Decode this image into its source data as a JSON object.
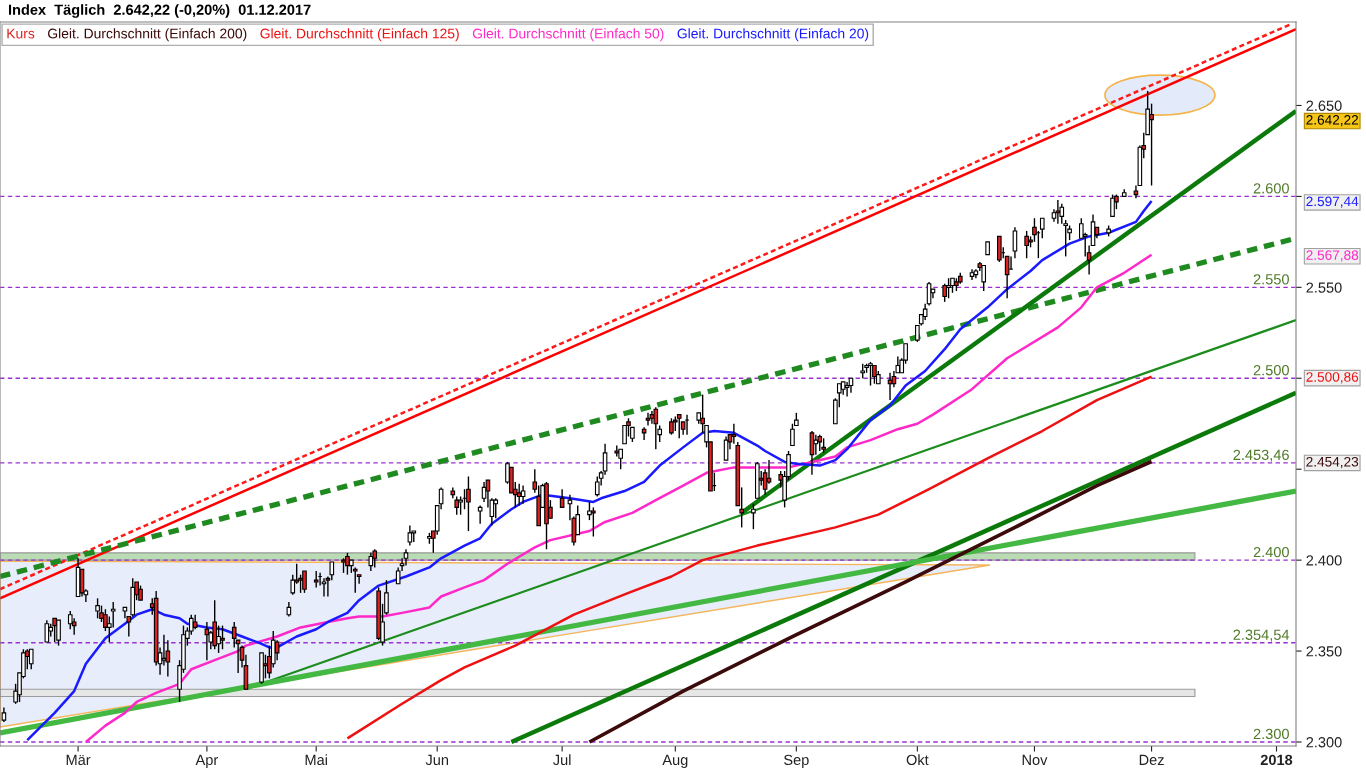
{
  "chart_data": {
    "type": "candlestick",
    "title": "Index  Täglich  2.642,22 (-0,20%)  01.12.2017",
    "legend": "top left",
    "xlim": [
      "2017-02-09",
      "2018-01-07"
    ],
    "ylim": [
      2297.8,
      2695.9
    ],
    "xticks": [
      {
        "value": "2017-03-01",
        "label": "Mär"
      },
      {
        "value": "2017-04-03",
        "label": "Apr"
      },
      {
        "value": "2017-05-01",
        "label": "Mai"
      },
      {
        "value": "2017-06-01",
        "label": "Jun"
      },
      {
        "value": "2017-07-03",
        "label": "Jul"
      },
      {
        "value": "2017-08-01",
        "label": "Aug"
      },
      {
        "value": "2017-09-01",
        "label": "Sep"
      },
      {
        "value": "2017-10-02",
        "label": "Okt"
      },
      {
        "value": "2017-11-01",
        "label": "Nov"
      },
      {
        "value": "2017-12-01",
        "label": "Dez"
      },
      {
        "value": "2018-01-02",
        "label": "2018"
      }
    ],
    "yticks": [
      {
        "value": 2300,
        "label": "2.300"
      },
      {
        "value": 2350,
        "label": "2.350"
      },
      {
        "value": 2400,
        "label": "2.400"
      },
      {
        "value": 2450,
        "label": null
      },
      {
        "value": 2454.23,
        "label": "2.454,23"
      },
      {
        "value": 2500,
        "label": null
      },
      {
        "value": 2500.86,
        "label": "2.500,86"
      },
      {
        "value": 2550,
        "label": "2.550"
      },
      {
        "value": 2567.88,
        "label": "2.567,88"
      },
      {
        "value": 2597.44,
        "label": "2.597,44"
      },
      {
        "value": 2600,
        "label": null
      },
      {
        "value": 2642.22,
        "label": "2.642,22"
      },
      {
        "value": 2650,
        "label": "2.650"
      }
    ],
    "ref_lines": [
      {
        "axis": "y",
        "value": 2600,
        "label": "2.600",
        "color": "#9b30d0",
        "line_style": "dashed"
      },
      {
        "axis": "y",
        "value": 2550,
        "label": "2.550",
        "color": "#9b30d0",
        "line_style": "dashed"
      },
      {
        "axis": "y",
        "value": 2500,
        "label": "2.500",
        "color": "#9b30d0",
        "line_style": "dashed"
      },
      {
        "axis": "y",
        "value": 2453.46,
        "label": "2.453,46",
        "color": "#9b30d0",
        "line_style": "dashed"
      },
      {
        "axis": "y",
        "value": 2400,
        "label": "2.400",
        "color": "#9b30d0",
        "line_style": "dashed"
      },
      {
        "axis": "y",
        "value": 2354.54,
        "label": "2.354,54",
        "color": "#9b30d0",
        "line_style": "dashed"
      },
      {
        "axis": "y",
        "value": 2300,
        "label": "2.300",
        "color": "#9b30d0",
        "line_style": "dashed"
      }
    ],
    "bands": [
      {
        "axis": "y",
        "from": 2400,
        "to": 2404,
        "color": "#b9dcb5"
      },
      {
        "axis": "y",
        "from": 2325,
        "to": 2329,
        "color": "#e6e6e6"
      }
    ],
    "series": [
      {
        "name": "Kurs",
        "x": [
          "2017-02-10",
          "2017-02-13",
          "2017-02-14",
          "2017-02-15",
          "2017-02-16",
          "2017-02-17",
          "2017-02-21",
          "2017-02-22",
          "2017-02-23",
          "2017-02-24",
          "2017-02-27",
          "2017-02-28",
          "2017-03-01",
          "2017-03-02",
          "2017-03-03",
          "2017-03-06",
          "2017-03-07",
          "2017-03-08",
          "2017-03-09",
          "2017-03-10",
          "2017-03-13",
          "2017-03-14",
          "2017-03-15",
          "2017-03-16",
          "2017-03-17",
          "2017-03-20",
          "2017-03-21",
          "2017-03-22",
          "2017-03-23",
          "2017-03-24",
          "2017-03-27",
          "2017-03-28",
          "2017-03-29",
          "2017-03-30",
          "2017-03-31",
          "2017-04-03",
          "2017-04-04",
          "2017-04-05",
          "2017-04-06",
          "2017-04-07",
          "2017-04-10",
          "2017-04-11",
          "2017-04-12",
          "2017-04-13",
          "2017-04-17",
          "2017-04-18",
          "2017-04-19",
          "2017-04-20",
          "2017-04-21",
          "2017-04-24",
          "2017-04-25",
          "2017-04-26",
          "2017-04-27",
          "2017-04-28",
          "2017-05-01",
          "2017-05-02",
          "2017-05-03",
          "2017-05-04",
          "2017-05-05",
          "2017-05-08",
          "2017-05-09",
          "2017-05-10",
          "2017-05-11",
          "2017-05-12",
          "2017-05-15",
          "2017-05-16",
          "2017-05-17",
          "2017-05-18",
          "2017-05-19",
          "2017-05-22",
          "2017-05-23",
          "2017-05-24",
          "2017-05-25",
          "2017-05-26",
          "2017-05-30",
          "2017-05-31",
          "2017-06-01",
          "2017-06-02",
          "2017-06-05",
          "2017-06-06",
          "2017-06-07",
          "2017-06-08",
          "2017-06-09",
          "2017-06-12",
          "2017-06-13",
          "2017-06-14",
          "2017-06-15",
          "2017-06-16",
          "2017-06-19",
          "2017-06-20",
          "2017-06-21",
          "2017-06-22",
          "2017-06-23",
          "2017-06-26",
          "2017-06-27",
          "2017-06-28",
          "2017-06-29",
          "2017-06-30",
          "2017-07-03",
          "2017-07-05",
          "2017-07-06",
          "2017-07-07",
          "2017-07-10",
          "2017-07-11",
          "2017-07-12",
          "2017-07-13",
          "2017-07-14",
          "2017-07-17",
          "2017-07-18",
          "2017-07-19",
          "2017-07-20",
          "2017-07-21",
          "2017-07-24",
          "2017-07-25",
          "2017-07-26",
          "2017-07-27",
          "2017-07-28",
          "2017-07-31",
          "2017-08-01",
          "2017-08-02",
          "2017-08-03",
          "2017-08-04",
          "2017-08-07",
          "2017-08-08",
          "2017-08-09",
          "2017-08-10",
          "2017-08-11",
          "2017-08-14",
          "2017-08-15",
          "2017-08-16",
          "2017-08-17",
          "2017-08-18",
          "2017-08-21",
          "2017-08-22",
          "2017-08-23",
          "2017-08-24",
          "2017-08-25",
          "2017-08-28",
          "2017-08-29",
          "2017-08-30",
          "2017-08-31",
          "2017-09-01",
          "2017-09-05",
          "2017-09-06",
          "2017-09-07",
          "2017-09-08",
          "2017-09-11",
          "2017-09-12",
          "2017-09-13",
          "2017-09-14",
          "2017-09-15",
          "2017-09-18",
          "2017-09-19",
          "2017-09-20",
          "2017-09-21",
          "2017-09-22",
          "2017-09-25",
          "2017-09-26",
          "2017-09-27",
          "2017-09-28",
          "2017-09-29",
          "2017-10-02",
          "2017-10-03",
          "2017-10-04",
          "2017-10-05",
          "2017-10-06",
          "2017-10-09",
          "2017-10-10",
          "2017-10-11",
          "2017-10-12",
          "2017-10-13",
          "2017-10-16",
          "2017-10-17",
          "2017-10-18",
          "2017-10-19",
          "2017-10-20",
          "2017-10-23",
          "2017-10-24",
          "2017-10-25",
          "2017-10-26",
          "2017-10-27",
          "2017-10-30",
          "2017-10-31",
          "2017-11-01",
          "2017-11-02",
          "2017-11-03",
          "2017-11-06",
          "2017-11-07",
          "2017-11-08",
          "2017-11-09",
          "2017-11-10",
          "2017-11-13",
          "2017-11-14",
          "2017-11-15",
          "2017-11-16",
          "2017-11-17",
          "2017-11-20",
          "2017-11-21",
          "2017-11-22",
          "2017-11-24",
          "2017-11-27",
          "2017-11-28",
          "2017-11-29",
          "2017-11-30",
          "2017-12-01"
        ],
        "ohlc": [
          [
            2312,
            2319,
            2311,
            2316
          ],
          [
            2322,
            2332,
            2321,
            2328
          ],
          [
            2326,
            2338,
            2322,
            2338
          ],
          [
            2336,
            2351,
            2335,
            2349
          ],
          [
            2350,
            2351,
            2340,
            2347
          ],
          [
            2343,
            2351,
            2340,
            2351
          ],
          [
            2355,
            2367,
            2355,
            2365
          ],
          [
            2361,
            2365,
            2358,
            2363
          ],
          [
            2368,
            2368,
            2355,
            2364
          ],
          [
            2356,
            2367,
            2353,
            2367
          ],
          [
            2365,
            2372,
            2362,
            2370
          ],
          [
            2366,
            2368,
            2359,
            2364
          ],
          [
            2380,
            2401,
            2380,
            2396
          ],
          [
            2395,
            2395,
            2380,
            2382
          ],
          [
            2381,
            2384,
            2377,
            2383
          ],
          [
            2372,
            2379,
            2368,
            2375
          ],
          [
            2371,
            2375,
            2366,
            2368
          ],
          [
            2370,
            2373,
            2361,
            2363
          ],
          [
            2363,
            2369,
            2355,
            2365
          ],
          [
            2372,
            2377,
            2363,
            2373
          ],
          [
            2372,
            2374,
            2368,
            2374
          ],
          [
            2369,
            2369,
            2358,
            2366
          ],
          [
            2370,
            2390,
            2369,
            2385
          ],
          [
            2388,
            2388,
            2378,
            2381
          ],
          [
            2384,
            2386,
            2378,
            2378
          ],
          [
            2376,
            2379,
            2370,
            2374
          ],
          [
            2379,
            2383,
            2342,
            2344
          ],
          [
            2343,
            2352,
            2337,
            2349
          ],
          [
            2345,
            2359,
            2342,
            2346
          ],
          [
            2350,
            2356,
            2336,
            2344
          ],
          [
            2329,
            2345,
            2322,
            2342
          ],
          [
            2340,
            2364,
            2338,
            2359
          ],
          [
            2357,
            2363,
            2353,
            2361
          ],
          [
            2361,
            2370,
            2359,
            2368
          ],
          [
            2366,
            2370,
            2362,
            2363
          ],
          [
            2362,
            2366,
            2345,
            2359
          ],
          [
            2355,
            2361,
            2351,
            2360
          ],
          [
            2366,
            2378,
            2351,
            2353
          ],
          [
            2354,
            2364,
            2349,
            2358
          ],
          [
            2357,
            2364,
            2351,
            2356
          ],
          [
            2363,
            2366,
            2352,
            2357
          ],
          [
            2356,
            2356,
            2338,
            2354
          ],
          [
            2352,
            2353,
            2341,
            2345
          ],
          [
            2342,
            2348,
            2329,
            2329
          ],
          [
            2333,
            2349,
            2332,
            2349
          ],
          [
            2343,
            2348,
            2335,
            2342
          ],
          [
            2347,
            2353,
            2335,
            2338
          ],
          [
            2343,
            2361,
            2341,
            2356
          ],
          [
            2355,
            2356,
            2345,
            2349
          ],
          [
            2370,
            2377,
            2369,
            2374
          ],
          [
            2382,
            2392,
            2381,
            2389
          ],
          [
            2389,
            2398,
            2387,
            2388
          ],
          [
            2390,
            2392,
            2382,
            2389
          ],
          [
            2394,
            2394,
            2382,
            2384
          ],
          [
            2389,
            2394,
            2385,
            2388
          ],
          [
            2391,
            2393,
            2386,
            2391
          ],
          [
            2387,
            2390,
            2380,
            2388
          ],
          [
            2390,
            2391,
            2380,
            2389
          ],
          [
            2392,
            2399,
            2389,
            2399
          ],
          [
            2400,
            2401,
            2393,
            2399
          ],
          [
            2402,
            2404,
            2392,
            2397
          ],
          [
            2397,
            2400,
            2393,
            2400
          ],
          [
            2395,
            2396,
            2382,
            2394
          ],
          [
            2392,
            2392,
            2387,
            2391
          ],
          [
            2397,
            2404,
            2394,
            2402
          ],
          [
            2405,
            2406,
            2396,
            2401
          ],
          [
            2383,
            2385,
            2356,
            2357
          ],
          [
            2355,
            2376,
            2353,
            2366
          ],
          [
            2371,
            2389,
            2370,
            2382
          ],
          [
            2387,
            2396,
            2387,
            2394
          ],
          [
            2397,
            2401,
            2394,
            2398
          ],
          [
            2401,
            2406,
            2397,
            2404
          ],
          [
            2410,
            2419,
            2408,
            2415
          ],
          [
            2415,
            2416,
            2410,
            2416
          ],
          [
            2412,
            2415,
            2409,
            2413
          ],
          [
            2416,
            2416,
            2404,
            2412
          ],
          [
            2416,
            2430,
            2414,
            2430
          ],
          [
            2431,
            2440,
            2428,
            2439
          ],
          [
            2438,
            2440,
            2434,
            2436
          ],
          [
            2433,
            2435,
            2425,
            2429
          ],
          [
            2432,
            2435,
            2425,
            2433
          ],
          [
            2434,
            2439,
            2428,
            2434
          ],
          [
            2439,
            2446,
            2416,
            2432
          ],
          [
            2427,
            2430,
            2420,
            2429
          ],
          [
            2434,
            2443,
            2432,
            2440
          ],
          [
            2444,
            2444,
            2429,
            2438
          ],
          [
            2424,
            2434,
            2419,
            2433
          ],
          [
            2431,
            2434,
            2423,
            2433
          ],
          [
            2443,
            2454,
            2442,
            2453
          ],
          [
            2451,
            2451,
            2437,
            2437
          ],
          [
            2439,
            2443,
            2429,
            2436
          ],
          [
            2437,
            2442,
            2430,
            2435
          ],
          [
            2435,
            2441,
            2431,
            2438
          ],
          [
            2443,
            2450,
            2437,
            2439
          ],
          [
            2435,
            2441,
            2419,
            2419
          ],
          [
            2429,
            2442,
            2429,
            2441
          ],
          [
            2442,
            2443,
            2406,
            2420
          ],
          [
            2429,
            2433,
            2423,
            2423
          ],
          [
            2434,
            2439,
            2429,
            2429
          ],
          [
            2431,
            2436,
            2422,
            2433
          ],
          [
            2423,
            2424,
            2408,
            2410
          ],
          [
            2414,
            2430,
            2414,
            2425
          ],
          [
            2425,
            2432,
            2422,
            2427
          ],
          [
            2427,
            2429,
            2413,
            2426
          ],
          [
            2436,
            2446,
            2435,
            2443
          ],
          [
            2445,
            2449,
            2441,
            2448
          ],
          [
            2449,
            2464,
            2447,
            2459
          ],
          [
            2460,
            2463,
            2457,
            2459
          ],
          [
            2456,
            2461,
            2450,
            2461
          ],
          [
            2464,
            2474,
            2464,
            2474
          ],
          [
            2476,
            2478,
            2468,
            2474
          ],
          [
            2467,
            2473,
            2465,
            2473
          ],
          [
            2472,
            2473,
            2466,
            2470
          ],
          [
            2478,
            2481,
            2474,
            2477
          ],
          [
            2480,
            2482,
            2475,
            2478
          ],
          [
            2483,
            2484,
            2461,
            2475
          ],
          [
            2469,
            2474,
            2465,
            2472
          ],
          [
            2476,
            2478,
            2469,
            2470
          ],
          [
            2477,
            2479,
            2471,
            2476
          ],
          [
            2480,
            2480,
            2467,
            2478
          ],
          [
            2476,
            2476,
            2469,
            2472
          ],
          [
            2477,
            2480,
            2469,
            2477
          ],
          [
            2477,
            2481,
            2475,
            2481
          ],
          [
            2478,
            2491,
            2470,
            2475
          ],
          [
            2465,
            2474,
            2462,
            2474
          ],
          [
            2465,
            2465,
            2438,
            2438
          ],
          [
            2441,
            2448,
            2438,
            2441
          ],
          [
            2455,
            2468,
            2455,
            2466
          ],
          [
            2469,
            2469,
            2461,
            2465
          ],
          [
            2469,
            2475,
            2464,
            2468
          ],
          [
            2463,
            2465,
            2430,
            2430
          ],
          [
            2428,
            2440,
            2418,
            2426
          ],
          [
            2426,
            2431,
            2417,
            2428
          ],
          [
            2434,
            2454,
            2434,
            2453
          ],
          [
            2445,
            2449,
            2441,
            2444
          ],
          [
            2448,
            2450,
            2436,
            2439
          ],
          [
            2445,
            2455,
            2442,
            2443
          ],
          [
            2447,
            2449,
            2440,
            2444
          ],
          [
            2433,
            2449,
            2429,
            2446
          ],
          [
            2446,
            2460,
            2444,
            2458
          ],
          [
            2463,
            2475,
            2463,
            2472
          ],
          [
            2474,
            2481,
            2474,
            2477
          ],
          [
            2470,
            2471,
            2447,
            2458
          ],
          [
            2464,
            2469,
            2458,
            2466
          ],
          [
            2468,
            2469,
            2460,
            2465
          ],
          [
            2462,
            2467,
            2459,
            2461
          ],
          [
            2475,
            2489,
            2475,
            2488
          ],
          [
            2492,
            2497,
            2484,
            2497
          ],
          [
            2494,
            2498,
            2491,
            2498
          ],
          [
            2495,
            2498,
            2490,
            2496
          ],
          [
            2496,
            2500,
            2492,
            2500
          ],
          [
            2503,
            2508,
            2500,
            2504
          ],
          [
            2506,
            2508,
            2503,
            2507
          ],
          [
            2507,
            2509,
            2496,
            2508
          ],
          [
            2507,
            2507,
            2497,
            2501
          ],
          [
            2497,
            2504,
            2497,
            2502
          ],
          [
            2499,
            2503,
            2488,
            2497
          ],
          [
            2501,
            2504,
            2495,
            2497
          ],
          [
            2503,
            2512,
            2503,
            2507
          ],
          [
            2503,
            2511,
            2503,
            2510
          ],
          [
            2510,
            2519,
            2508,
            2519
          ],
          [
            2521,
            2529,
            2520,
            2529
          ],
          [
            2530,
            2535,
            2529,
            2535
          ],
          [
            2534,
            2541,
            2532,
            2538
          ],
          [
            2541,
            2553,
            2540,
            2552
          ],
          [
            2547,
            2549,
            2544,
            2549
          ],
          [
            2551,
            2552,
            2542,
            2545
          ],
          [
            2550,
            2555,
            2544,
            2551
          ],
          [
            2551,
            2555,
            2547,
            2555
          ],
          [
            2553,
            2555,
            2548,
            2551
          ],
          [
            2556,
            2558,
            2552,
            2553
          ],
          [
            2556,
            2560,
            2554,
            2558
          ],
          [
            2557,
            2560,
            2555,
            2559
          ],
          [
            2563,
            2564,
            2559,
            2561
          ],
          [
            2553,
            2562,
            2548,
            2562
          ],
          [
            2568,
            2575,
            2568,
            2575
          ],
          [
            2578,
            2578,
            2564,
            2565
          ],
          [
            2569,
            2572,
            2566,
            2569
          ],
          [
            2567,
            2567,
            2544,
            2557
          ],
          [
            2560,
            2567,
            2560,
            2560
          ],
          [
            2570,
            2583,
            2566,
            2581
          ],
          [
            2578,
            2581,
            2566,
            2573
          ],
          [
            2576,
            2578,
            2572,
            2575
          ],
          [
            2583,
            2588,
            2575,
            2579
          ],
          [
            2580,
            2581,
            2566,
            2580
          ],
          [
            2582,
            2588,
            2577,
            2588
          ],
          [
            2588,
            2593,
            2586,
            2591
          ],
          [
            2592,
            2598,
            2585,
            2591
          ],
          [
            2589,
            2596,
            2585,
            2594
          ],
          [
            2584,
            2587,
            2567,
            2585
          ],
          [
            2580,
            2584,
            2576,
            2582
          ],
          [
            2577,
            2588,
            2577,
            2585
          ],
          [
            2578,
            2580,
            2567,
            2579
          ],
          [
            2569,
            2573,
            2557,
            2565
          ],
          [
            2573,
            2590,
            2573,
            2586
          ],
          [
            2583,
            2583,
            2577,
            2579
          ],
          [
            2580,
            2584,
            2578,
            2582
          ],
          [
            2589,
            2601,
            2589,
            2599
          ],
          [
            2600,
            2601,
            2593,
            2597
          ],
          [
            2600,
            2604,
            2600,
            2602
          ],
          [
            2603,
            2606,
            2599,
            2601
          ],
          [
            2606,
            2628,
            2606,
            2627
          ],
          [
            2628,
            2635,
            2621,
            2626
          ],
          [
            2634,
            2658,
            2634,
            2648
          ],
          [
            2645,
            2651,
            2606,
            2642.22
          ]
        ],
        "colors": [
          "#ffffff",
          "#ffffff",
          "#ffffff",
          "#ffffff",
          "#dd2222",
          "#ffffff",
          "#ffffff",
          "#ffffff",
          "#dd2222",
          "#ffffff",
          "#ffffff",
          "#dd2222",
          "#ffffff",
          "#dd2222",
          "#ffffff",
          "#ffffff",
          "#dd2222",
          "#dd2222",
          "#ffffff",
          "#ffffff",
          "#ffffff",
          "#dd2222",
          "#ffffff",
          "#dd2222",
          "#dd2222",
          "#dd2222",
          "#dd2222",
          "#ffffff",
          "#ffffff",
          "#dd2222",
          "#ffffff",
          "#ffffff",
          "#ffffff",
          "#ffffff",
          "#dd2222",
          "#dd2222",
          "#ffffff",
          "#dd2222",
          "#ffffff",
          "#dd2222",
          "#dd2222",
          "#dd2222",
          "#dd2222",
          "#dd2222",
          "#ffffff",
          "#dd2222",
          "#dd2222",
          "#ffffff",
          "#dd2222",
          "#ffffff",
          "#ffffff",
          "#dd2222",
          "#dd2222",
          "#dd2222",
          "#dd2222",
          "#000000",
          "#ffffff",
          "#dd2222",
          "#ffffff",
          "#dd2222",
          "#dd2222",
          "#ffffff",
          "#dd2222",
          "#dd2222",
          "#ffffff",
          "#dd2222",
          "#dd2222",
          "#ffffff",
          "#ffffff",
          "#ffffff",
          "#ffffff",
          "#ffffff",
          "#ffffff",
          "#ffffff",
          "#ffffff",
          "#dd2222",
          "#ffffff",
          "#ffffff",
          "#dd2222",
          "#dd2222",
          "#ffffff",
          "#000000",
          "#dd2222",
          "#ffffff",
          "#ffffff",
          "#dd2222",
          "#ffffff",
          "#ffffff",
          "#ffffff",
          "#dd2222",
          "#dd2222",
          "#dd2222",
          "#ffffff",
          "#dd2222",
          "#dd2222",
          "#ffffff",
          "#dd2222",
          "#dd2222",
          "#dd2222",
          "#ffffff",
          "#dd2222",
          "#ffffff",
          "#ffffff",
          "#dd2222",
          "#ffffff",
          "#ffffff",
          "#ffffff",
          "#dd2222",
          "#ffffff",
          "#ffffff",
          "#dd2222",
          "#ffffff",
          "#dd2222",
          "#dd2222",
          "#dd2222",
          "#dd2222",
          "#ffffff",
          "#dd2222",
          "#dd2222",
          "#dd2222",
          "#dd2222",
          "#000000",
          "#ffffff",
          "#dd2222",
          "#ffffff",
          "#dd2222",
          "#000000",
          "#ffffff",
          "#dd2222",
          "#dd2222",
          "#dd2222",
          "#dd2222",
          "#ffffff",
          "#ffffff",
          "#dd2222",
          "#dd2222",
          "#dd2222",
          "#dd2222",
          "#ffffff",
          "#ffffff",
          "#ffffff",
          "#ffffff",
          "#dd2222",
          "#ffffff",
          "#dd2222",
          "#dd2222",
          "#ffffff",
          "#ffffff",
          "#ffffff",
          "#ffffff",
          "#ffffff",
          "#ffffff",
          "#ffffff",
          "#ffffff",
          "#dd2222",
          "#ffffff",
          "#dd2222",
          "#dd2222",
          "#ffffff",
          "#ffffff",
          "#ffffff",
          "#ffffff",
          "#ffffff",
          "#ffffff",
          "#ffffff",
          "#ffffff",
          "#dd2222",
          "#ffffff",
          "#ffffff",
          "#dd2222",
          "#dd2222",
          "#ffffff",
          "#ffffff",
          "#dd2222",
          "#ffffff",
          "#ffffff",
          "#dd2222",
          "#000000",
          "#dd2222",
          "#000000",
          "#ffffff",
          "#dd2222",
          "#dd2222",
          "#dd2222",
          "#000000",
          "#ffffff",
          "#ffffff",
          "#dd2222",
          "#ffffff",
          "#ffffff",
          "#ffffff",
          "#ffffff",
          "#ffffff",
          "#dd2222",
          "#ffffff",
          "#dd2222",
          "#ffffff",
          "#ffffff",
          "#dd2222",
          "#ffffff",
          "#dd2222",
          "#ffffff",
          "#dd2222",
          "#ffffff",
          "#dd2222"
        ]
      },
      {
        "name": "Gleit. Durchschnitt (Einfach 200)",
        "type": "line",
        "color": "#3c0a0a",
        "x": [
          "2017-07-10",
          "2017-08-03",
          "2017-08-31",
          "2017-09-29",
          "2017-10-27",
          "2017-11-17",
          "2017-12-01"
        ],
        "values": [
          2300,
          2328,
          2358,
          2388,
          2418,
          2441,
          2454.23
        ]
      },
      {
        "name": "Gleit. Durchschnitt (Einfach 125)",
        "type": "line",
        "color": "#ee1111",
        "x": [
          "2017-05-09",
          "2017-05-23",
          "2017-06-02",
          "2017-06-08",
          "2017-06-21",
          "2017-07-06",
          "2017-07-20",
          "2017-07-31",
          "2017-08-08",
          "2017-08-22",
          "2017-09-11",
          "2017-09-22",
          "2017-10-05",
          "2017-10-20",
          "2017-11-03",
          "2017-11-17",
          "2017-12-01"
        ],
        "values": [
          2302,
          2321,
          2334,
          2341,
          2353,
          2370,
          2382,
          2391,
          2400,
          2408,
          2418,
          2425,
          2439,
          2456,
          2471,
          2488,
          2500.86
        ]
      },
      {
        "name": "Gleit. Durchschnitt (Einfach 50)",
        "type": "line",
        "color": "#ff28c8",
        "x": [
          "2017-03-03",
          "2017-03-08",
          "2017-03-13",
          "2017-03-16",
          "2017-03-21",
          "2017-03-27",
          "2017-03-30",
          "2017-04-05",
          "2017-04-11",
          "2017-04-13",
          "2017-04-21",
          "2017-04-27",
          "2017-05-04",
          "2017-05-09",
          "2017-05-12",
          "2017-05-18",
          "2017-05-23",
          "2017-05-30",
          "2017-06-02",
          "2017-06-08",
          "2017-06-13",
          "2017-06-19",
          "2017-06-26",
          "2017-06-30",
          "2017-07-10",
          "2017-07-14",
          "2017-07-21",
          "2017-07-27",
          "2017-08-03",
          "2017-08-09",
          "2017-08-16",
          "2017-08-23",
          "2017-08-30",
          "2017-09-05",
          "2017-09-11",
          "2017-09-14",
          "2017-09-20",
          "2017-09-27",
          "2017-10-02",
          "2017-10-06",
          "2017-10-16",
          "2017-10-25",
          "2017-11-07",
          "2017-11-13",
          "2017-11-17",
          "2017-11-24",
          "2017-12-01"
        ],
        "values": [
          2300,
          2309,
          2316,
          2322,
          2327,
          2332,
          2340,
          2345,
          2350,
          2353,
          2358,
          2363,
          2366,
          2368,
          2369,
          2369,
          2371,
          2374,
          2380,
          2385,
          2389,
          2398,
          2407,
          2411,
          2416,
          2421,
          2426,
          2433,
          2441,
          2448,
          2451,
          2451,
          2451,
          2454,
          2457,
          2462,
          2466,
          2472,
          2475,
          2480,
          2494,
          2511,
          2528,
          2539,
          2550,
          2558,
          2567.88
        ]
      },
      {
        "name": "Gleit. Durchschnitt (Einfach 20)",
        "type": "line",
        "color": "#1a1aff",
        "x": [
          "2017-02-16",
          "2017-02-23",
          "2017-02-28",
          "2017-03-03",
          "2017-03-08",
          "2017-03-13",
          "2017-03-16",
          "2017-03-20",
          "2017-03-23",
          "2017-03-27",
          "2017-03-29",
          "2017-04-03",
          "2017-04-07",
          "2017-04-12",
          "2017-04-17",
          "2017-04-19",
          "2017-04-21",
          "2017-04-26",
          "2017-05-01",
          "2017-05-04",
          "2017-05-09",
          "2017-05-12",
          "2017-05-17",
          "2017-05-24",
          "2017-05-30",
          "2017-06-02",
          "2017-06-08",
          "2017-06-12",
          "2017-06-15",
          "2017-06-20",
          "2017-06-23",
          "2017-06-28",
          "2017-07-05",
          "2017-07-11",
          "2017-07-13",
          "2017-07-19",
          "2017-07-24",
          "2017-07-28",
          "2017-08-03",
          "2017-08-08",
          "2017-08-11",
          "2017-08-16",
          "2017-08-22",
          "2017-08-24",
          "2017-08-29",
          "2017-09-01",
          "2017-09-07",
          "2017-09-11",
          "2017-09-14",
          "2017-09-20",
          "2017-09-25",
          "2017-09-29",
          "2017-10-04",
          "2017-10-09",
          "2017-10-13",
          "2017-10-20",
          "2017-10-25",
          "2017-10-31",
          "2017-11-03",
          "2017-11-10",
          "2017-11-15",
          "2017-11-20",
          "2017-11-27",
          "2017-11-29",
          "2017-12-01"
        ],
        "values": [
          2301,
          2316,
          2328,
          2343,
          2357,
          2365,
          2370,
          2373,
          2370,
          2368,
          2365,
          2363,
          2362,
          2358,
          2354,
          2352,
          2352,
          2358,
          2362,
          2366,
          2371,
          2378,
          2386,
          2391,
          2396,
          2401,
          2408,
          2412,
          2420,
          2428,
          2432,
          2436,
          2434,
          2432,
          2434,
          2438,
          2443,
          2452,
          2462,
          2470,
          2471,
          2470,
          2463,
          2460,
          2454,
          2453,
          2452,
          2455,
          2461,
          2477,
          2485,
          2496,
          2504,
          2516,
          2527,
          2539,
          2549,
          2559,
          2565,
          2574,
          2578,
          2580,
          2586,
          2592,
          2597.44
        ]
      },
      {
        "type": "line",
        "color": "#ff0000",
        "x": [
          "2017-02-09",
          "2018-01-07"
        ],
        "values": [
          2379,
          2692
        ]
      },
      {
        "type": "line",
        "color": "#ff1a1a",
        "line_style": "dashed",
        "x": [
          "2017-02-09",
          "2018-01-06"
        ],
        "values": [
          2384,
          2695
        ]
      },
      {
        "type": "line",
        "color": "#1f8a1f",
        "line_style": "dashed",
        "x": [
          "2017-02-09",
          "2018-01-07"
        ],
        "values": [
          2391,
          2577
        ]
      },
      {
        "type": "line",
        "color": "#1c8c1c",
        "x": [
          "2017-04-13",
          "2018-01-07"
        ],
        "values": [
          2329,
          2532
        ]
      },
      {
        "type": "line",
        "color": "#0b7a0b",
        "x": [
          "2017-06-20",
          "2018-01-07"
        ],
        "values": [
          2300,
          2492
        ]
      },
      {
        "type": "line",
        "color": "#0b7a0b",
        "x": [
          "2017-08-18",
          "2018-01-07"
        ],
        "values": [
          2426,
          2647
        ]
      },
      {
        "type": "line",
        "color": "#43b843",
        "x": [
          "2017-02-09",
          "2018-01-07"
        ],
        "values": [
          2305,
          2438
        ]
      }
    ]
  }
}
